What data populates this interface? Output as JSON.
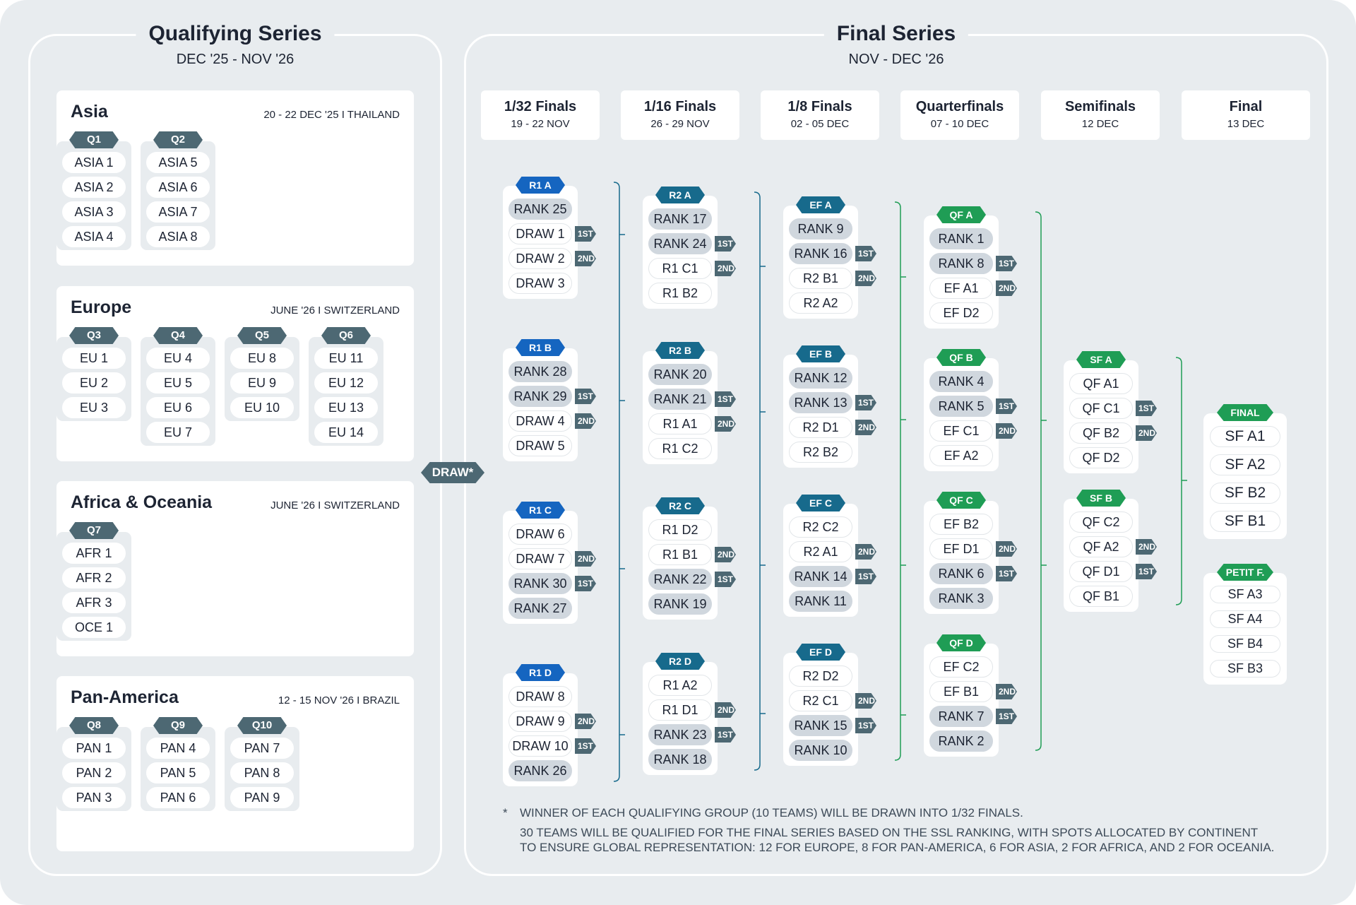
{
  "colors": {
    "background": "#e8ecef",
    "card": "#ffffff",
    "slate": "#4d6873",
    "blue": "#1565c0",
    "teal": "#176a8c",
    "green": "#1f9d55",
    "seed_fill": "#d0d7de"
  },
  "qualifying": {
    "title": "Qualifying Series",
    "subtitle": "DEC '25 - NOV '26",
    "regions": [
      {
        "name": "Asia",
        "meta": "20 - 22 DEC '25 I THAILAND",
        "groups": [
          {
            "label": "Q1",
            "teams": [
              "ASIA 1",
              "ASIA 2",
              "ASIA 3",
              "ASIA 4"
            ]
          },
          {
            "label": "Q2",
            "teams": [
              "ASIA 5",
              "ASIA 6",
              "ASIA 7",
              "ASIA 8"
            ]
          }
        ]
      },
      {
        "name": "Europe",
        "meta": "JUNE '26 I SWITZERLAND",
        "groups": [
          {
            "label": "Q3",
            "teams": [
              "EU 1",
              "EU 2",
              "EU 3"
            ]
          },
          {
            "label": "Q4",
            "teams": [
              "EU 4",
              "EU 5",
              "EU 6",
              "EU 7"
            ]
          },
          {
            "label": "Q5",
            "teams": [
              "EU 8",
              "EU 9",
              "EU 10"
            ]
          },
          {
            "label": "Q6",
            "teams": [
              "EU 11",
              "EU 12",
              "EU 13",
              "EU 14"
            ]
          }
        ]
      },
      {
        "name": "Africa & Oceania",
        "meta": "JUNE '26 I SWITZERLAND",
        "groups": [
          {
            "label": "Q7",
            "teams": [
              "AFR 1",
              "AFR 2",
              "AFR 3",
              "OCE 1"
            ]
          }
        ]
      },
      {
        "name": "Pan-America",
        "meta": "12 - 15 NOV '26 I BRAZIL",
        "groups": [
          {
            "label": "Q8",
            "teams": [
              "PAN 1",
              "PAN 2",
              "PAN 3"
            ]
          },
          {
            "label": "Q9",
            "teams": [
              "PAN 4",
              "PAN 5",
              "PAN 6"
            ]
          },
          {
            "label": "Q10",
            "teams": [
              "PAN 7",
              "PAN 8",
              "PAN 9"
            ]
          }
        ]
      }
    ]
  },
  "draw_label": "DRAW*",
  "final_series": {
    "title": "Final Series",
    "subtitle": "NOV - DEC '26",
    "rounds": [
      {
        "name": "1/32 Finals",
        "date": "19 - 22 NOV"
      },
      {
        "name": "1/16 Finals",
        "date": "26 - 29 NOV"
      },
      {
        "name": "1/8 Finals",
        "date": "02 - 05 DEC"
      },
      {
        "name": "Quarterfinals",
        "date": "07 - 10 DEC"
      },
      {
        "name": "Semifinals",
        "date": "12 DEC"
      },
      {
        "name": "Final",
        "date": "13 DEC"
      }
    ],
    "columns": [
      {
        "color": "#1565c0",
        "matches": [
          {
            "label": "R1 A",
            "slots": [
              {
                "t": "RANK 25",
                "s": 1,
                "b": ""
              },
              {
                "t": "DRAW 1",
                "s": 0,
                "b": "1ST"
              },
              {
                "t": "DRAW 2",
                "s": 0,
                "b": "2ND"
              },
              {
                "t": "DRAW 3",
                "s": 0,
                "b": ""
              }
            ]
          },
          {
            "label": "R1 B",
            "slots": [
              {
                "t": "RANK 28",
                "s": 1,
                "b": ""
              },
              {
                "t": "RANK 29",
                "s": 1,
                "b": "1ST"
              },
              {
                "t": "DRAW 4",
                "s": 0,
                "b": "2ND"
              },
              {
                "t": "DRAW 5",
                "s": 0,
                "b": ""
              }
            ]
          },
          {
            "label": "R1 C",
            "slots": [
              {
                "t": "DRAW 6",
                "s": 0,
                "b": ""
              },
              {
                "t": "DRAW 7",
                "s": 0,
                "b": "2ND"
              },
              {
                "t": "RANK 30",
                "s": 1,
                "b": "1ST"
              },
              {
                "t": "RANK 27",
                "s": 1,
                "b": ""
              }
            ]
          },
          {
            "label": "R1 D",
            "slots": [
              {
                "t": "DRAW 8",
                "s": 0,
                "b": ""
              },
              {
                "t": "DRAW 9",
                "s": 0,
                "b": "2ND"
              },
              {
                "t": "DRAW 10",
                "s": 0,
                "b": "1ST"
              },
              {
                "t": "RANK 26",
                "s": 1,
                "b": ""
              }
            ]
          }
        ]
      },
      {
        "color": "#176a8c",
        "matches": [
          {
            "label": "R2 A",
            "slots": [
              {
                "t": "RANK 17",
                "s": 1,
                "b": ""
              },
              {
                "t": "RANK 24",
                "s": 1,
                "b": "1ST"
              },
              {
                "t": "R1 C1",
                "s": 0,
                "b": "2ND"
              },
              {
                "t": "R1 B2",
                "s": 0,
                "b": ""
              }
            ]
          },
          {
            "label": "R2 B",
            "slots": [
              {
                "t": "RANK 20",
                "s": 1,
                "b": ""
              },
              {
                "t": "RANK 21",
                "s": 1,
                "b": "1ST"
              },
              {
                "t": "R1 A1",
                "s": 0,
                "b": "2ND"
              },
              {
                "t": "R1 C2",
                "s": 0,
                "b": ""
              }
            ]
          },
          {
            "label": "R2 C",
            "slots": [
              {
                "t": "R1 D2",
                "s": 0,
                "b": ""
              },
              {
                "t": "R1 B1",
                "s": 0,
                "b": "2ND"
              },
              {
                "t": "RANK 22",
                "s": 1,
                "b": "1ST"
              },
              {
                "t": "RANK 19",
                "s": 1,
                "b": ""
              }
            ]
          },
          {
            "label": "R2 D",
            "slots": [
              {
                "t": "R1 A2",
                "s": 0,
                "b": ""
              },
              {
                "t": "R1 D1",
                "s": 0,
                "b": "2ND"
              },
              {
                "t": "RANK 23",
                "s": 1,
                "b": "1ST"
              },
              {
                "t": "RANK 18",
                "s": 1,
                "b": ""
              }
            ]
          }
        ]
      },
      {
        "color": "#176a8c",
        "matches": [
          {
            "label": "EF A",
            "slots": [
              {
                "t": "RANK 9",
                "s": 1,
                "b": ""
              },
              {
                "t": "RANK 16",
                "s": 1,
                "b": "1ST"
              },
              {
                "t": "R2 B1",
                "s": 0,
                "b": "2ND"
              },
              {
                "t": "R2 A2",
                "s": 0,
                "b": ""
              }
            ]
          },
          {
            "label": "EF B",
            "slots": [
              {
                "t": "RANK 12",
                "s": 1,
                "b": ""
              },
              {
                "t": "RANK 13",
                "s": 1,
                "b": "1ST"
              },
              {
                "t": "R2 D1",
                "s": 0,
                "b": "2ND"
              },
              {
                "t": "R2 B2",
                "s": 0,
                "b": ""
              }
            ]
          },
          {
            "label": "EF C",
            "slots": [
              {
                "t": "R2 C2",
                "s": 0,
                "b": ""
              },
              {
                "t": "R2 A1",
                "s": 0,
                "b": "2ND"
              },
              {
                "t": "RANK 14",
                "s": 1,
                "b": "1ST"
              },
              {
                "t": "RANK 11",
                "s": 1,
                "b": ""
              }
            ]
          },
          {
            "label": "EF D",
            "slots": [
              {
                "t": "R2 D2",
                "s": 0,
                "b": ""
              },
              {
                "t": "R2 C1",
                "s": 0,
                "b": "2ND"
              },
              {
                "t": "RANK 15",
                "s": 1,
                "b": "1ST"
              },
              {
                "t": "RANK 10",
                "s": 1,
                "b": ""
              }
            ]
          }
        ]
      },
      {
        "color": "#1f9d55",
        "matches": [
          {
            "label": "QF A",
            "slots": [
              {
                "t": "RANK 1",
                "s": 1,
                "b": ""
              },
              {
                "t": "RANK 8",
                "s": 1,
                "b": "1ST"
              },
              {
                "t": "EF A1",
                "s": 0,
                "b": "2ND"
              },
              {
                "t": "EF D2",
                "s": 0,
                "b": ""
              }
            ]
          },
          {
            "label": "QF B",
            "slots": [
              {
                "t": "RANK 4",
                "s": 1,
                "b": ""
              },
              {
                "t": "RANK 5",
                "s": 1,
                "b": "1ST"
              },
              {
                "t": "EF C1",
                "s": 0,
                "b": "2ND"
              },
              {
                "t": "EF A2",
                "s": 0,
                "b": ""
              }
            ]
          },
          {
            "label": "QF C",
            "slots": [
              {
                "t": "EF B2",
                "s": 0,
                "b": ""
              },
              {
                "t": "EF D1",
                "s": 0,
                "b": "2ND"
              },
              {
                "t": "RANK 6",
                "s": 1,
                "b": "1ST"
              },
              {
                "t": "RANK 3",
                "s": 1,
                "b": ""
              }
            ]
          },
          {
            "label": "QF D",
            "slots": [
              {
                "t": "EF C2",
                "s": 0,
                "b": ""
              },
              {
                "t": "EF B1",
                "s": 0,
                "b": "2ND"
              },
              {
                "t": "RANK 7",
                "s": 1,
                "b": "1ST"
              },
              {
                "t": "RANK 2",
                "s": 1,
                "b": ""
              }
            ]
          }
        ]
      },
      {
        "color": "#1f9d55",
        "matches": [
          {
            "label": "SF A",
            "slots": [
              {
                "t": "QF A1",
                "s": 0,
                "b": ""
              },
              {
                "t": "QF C1",
                "s": 0,
                "b": "1ST"
              },
              {
                "t": "QF B2",
                "s": 0,
                "b": "2ND"
              },
              {
                "t": "QF D2",
                "s": 0,
                "b": ""
              }
            ]
          },
          {
            "label": "SF B",
            "slots": [
              {
                "t": "QF C2",
                "s": 0,
                "b": ""
              },
              {
                "t": "QF A2",
                "s": 0,
                "b": "2ND"
              },
              {
                "t": "QF D1",
                "s": 0,
                "b": "1ST"
              },
              {
                "t": "QF B1",
                "s": 0,
                "b": ""
              }
            ]
          }
        ]
      }
    ],
    "final": {
      "label": "FINAL",
      "slots": [
        "SF A1",
        "SF A2",
        "SF B2",
        "SF B1"
      ]
    },
    "petit_final": {
      "label": "PETIT F.",
      "slots": [
        "SF A3",
        "SF A4",
        "SF B4",
        "SF B3"
      ]
    }
  },
  "footnotes": {
    "marker": "*",
    "line1": "WINNER OF EACH QUALIFYING GROUP (10 TEAMS) WILL BE DRAWN INTO 1/32 FINALS.",
    "line2": "30 TEAMS WILL BE QUALIFIED FOR THE FINAL SERIES BASED ON THE SSL RANKING, WITH SPOTS ALLOCATED BY CONTINENT",
    "line3": "TO ENSURE GLOBAL REPRESENTATION: 12 FOR EUROPE, 8 FOR PAN-AMERICA, 6 FOR ASIA, 2 FOR AFRICA, AND 2 FOR OCEANIA."
  }
}
